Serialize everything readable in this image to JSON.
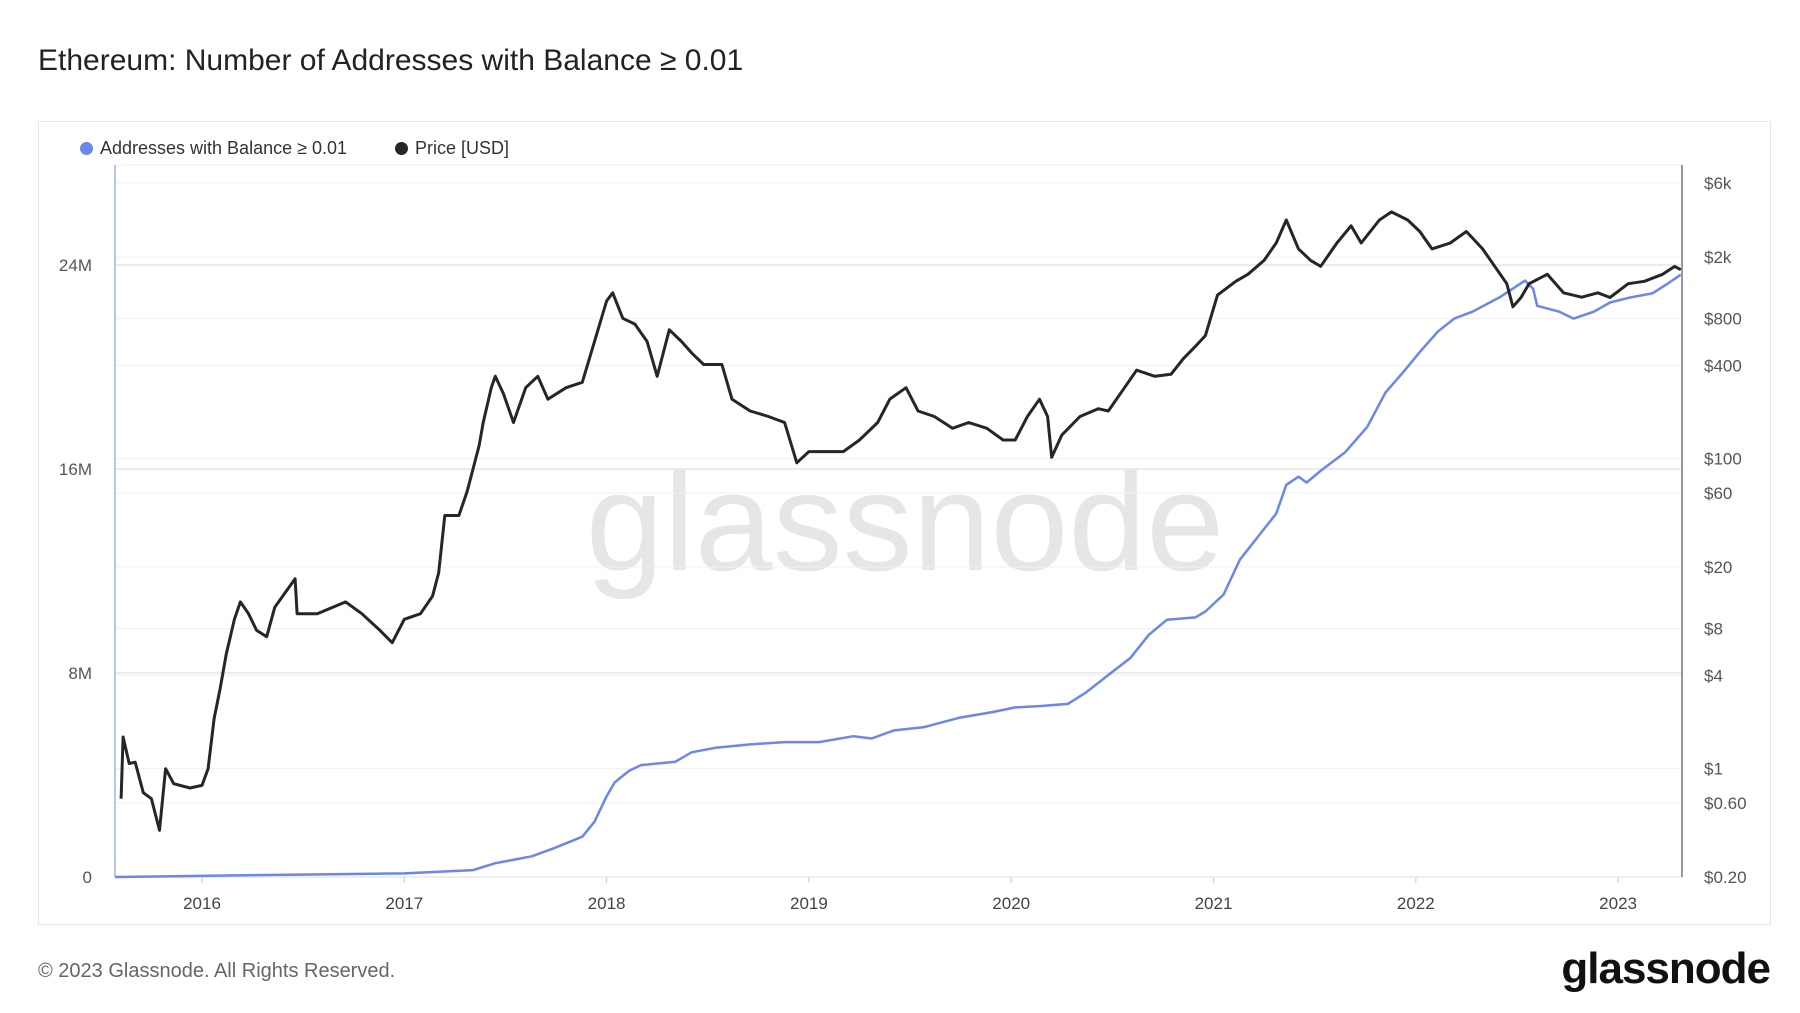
{
  "title": "Ethereum: Number of Addresses with Balance ≥ 0.01",
  "footer": "© 2023 Glassnode. All Rights Reserved.",
  "logo": "glassnode",
  "watermark": "glassnode",
  "colors": {
    "addresses": "#6b86ee",
    "price": "#262626"
  },
  "chart_data": {
    "type": "line",
    "title": "Ethereum: Number of Addresses with Balance ≥ 0.01",
    "legend": [
      "Addresses with Balance ≥ 0.01",
      "Price [USD]"
    ],
    "legend_position": "top-left",
    "x_ticks": [
      "2016",
      "2017",
      "2018",
      "2019",
      "2020",
      "2021",
      "2022",
      "2023"
    ],
    "x_range": [
      2015.57,
      2023.31
    ],
    "y_left": {
      "ticks": [
        "0",
        "8M",
        "16M",
        "24M"
      ],
      "tick_values": [
        0,
        8,
        16,
        24
      ],
      "unit": "millions",
      "range": [
        0,
        27.7
      ]
    },
    "y_right": {
      "scale": "log",
      "ticks": [
        "$0.20",
        "$0.60",
        "$1",
        "$4",
        "$8",
        "$20",
        "$60",
        "$100",
        "$400",
        "$800",
        "$2k",
        "$6k"
      ],
      "tick_values": [
        0.2,
        0.6,
        1,
        4,
        8,
        20,
        60,
        100,
        400,
        800,
        2000,
        6000
      ],
      "range": [
        0.2,
        6000
      ]
    },
    "grid": true,
    "series": [
      {
        "name": "Addresses with Balance ≥ 0.01",
        "axis": "left",
        "x": [
          2015.57,
          2016.43,
          2017.0,
          2017.34,
          2017.45,
          2017.63,
          2017.74,
          2017.88,
          2017.94,
          2018.0,
          2018.04,
          2018.11,
          2018.17,
          2018.34,
          2018.42,
          2018.54,
          2018.71,
          2018.88,
          2019.05,
          2019.22,
          2019.31,
          2019.42,
          2019.57,
          2019.74,
          2019.91,
          2020.02,
          2020.14,
          2020.28,
          2020.37,
          2020.48,
          2020.59,
          2020.68,
          2020.77,
          2020.91,
          2020.96,
          2021.05,
          2021.13,
          2021.22,
          2021.31,
          2021.36,
          2021.42,
          2021.46,
          2021.53,
          2021.65,
          2021.76,
          2021.85,
          2021.94,
          2022.02,
          2022.11,
          2022.19,
          2022.28,
          2022.42,
          2022.54,
          2022.58,
          2022.6,
          2022.71,
          2022.78,
          2022.88,
          2022.96,
          2023.05,
          2023.17,
          2023.25,
          2023.31
        ],
        "y": [
          0,
          0.09,
          0.14,
          0.27,
          0.54,
          0.81,
          1.13,
          1.58,
          2.17,
          3.17,
          3.71,
          4.16,
          4.39,
          4.52,
          4.89,
          5.07,
          5.2,
          5.29,
          5.29,
          5.52,
          5.43,
          5.75,
          5.88,
          6.24,
          6.47,
          6.65,
          6.7,
          6.79,
          7.24,
          7.92,
          8.6,
          9.5,
          10.09,
          10.18,
          10.41,
          11.08,
          12.44,
          13.35,
          14.25,
          15.38,
          15.7,
          15.47,
          15.93,
          16.65,
          17.65,
          19.0,
          19.82,
          20.59,
          21.4,
          21.9,
          22.17,
          22.76,
          23.39,
          23.07,
          22.4,
          22.17,
          21.9,
          22.17,
          22.53,
          22.71,
          22.89,
          23.3,
          23.62
        ]
      },
      {
        "name": "Price [USD]",
        "axis": "right",
        "x": [
          2015.6,
          2015.61,
          2015.64,
          2015.67,
          2015.71,
          2015.75,
          2015.79,
          2015.82,
          2015.86,
          2015.94,
          2016.0,
          2016.03,
          2016.06,
          2016.09,
          2016.12,
          2016.16,
          2016.19,
          2016.23,
          2016.27,
          2016.32,
          2016.36,
          2016.46,
          2016.47,
          2016.57,
          2016.71,
          2016.79,
          2016.88,
          2016.94,
          2017.0,
          2017.08,
          2017.14,
          2017.17,
          2017.2,
          2017.27,
          2017.31,
          2017.34,
          2017.37,
          2017.39,
          2017.43,
          2017.45,
          2017.49,
          2017.54,
          2017.6,
          2017.66,
          2017.71,
          2017.8,
          2017.88,
          2017.94,
          2018.0,
          2018.03,
          2018.08,
          2018.14,
          2018.2,
          2018.25,
          2018.31,
          2018.37,
          2018.42,
          2018.48,
          2018.57,
          2018.62,
          2018.71,
          2018.8,
          2018.88,
          2018.94,
          2019.0,
          2019.08,
          2019.17,
          2019.25,
          2019.34,
          2019.4,
          2019.48,
          2019.54,
          2019.62,
          2019.71,
          2019.79,
          2019.88,
          2019.96,
          2020.02,
          2020.08,
          2020.14,
          2020.18,
          2020.2,
          2020.25,
          2020.34,
          2020.43,
          2020.48,
          2020.56,
          2020.62,
          2020.71,
          2020.79,
          2020.85,
          2020.91,
          2020.96,
          2021.02,
          2021.11,
          2021.17,
          2021.25,
          2021.31,
          2021.36,
          2021.42,
          2021.48,
          2021.53,
          2021.61,
          2021.68,
          2021.73,
          2021.82,
          2021.88,
          2021.96,
          2022.02,
          2022.08,
          2022.17,
          2022.25,
          2022.33,
          2022.39,
          2022.45,
          2022.48,
          2022.52,
          2022.56,
          2022.65,
          2022.73,
          2022.82,
          2022.9,
          2022.96,
          2023.05,
          2023.13,
          2023.22,
          2023.28,
          2023.31
        ],
        "y": [
          0.64,
          1.6,
          1.08,
          1.1,
          0.7,
          0.64,
          0.4,
          1.0,
          0.8,
          0.75,
          0.78,
          1.0,
          2.1,
          3.3,
          5.5,
          9.2,
          11.9,
          10,
          7.8,
          7.1,
          11,
          16.8,
          10,
          10,
          11.9,
          10,
          7.8,
          6.5,
          9.2,
          10,
          13,
          18.4,
          43,
          43,
          61,
          86,
          122,
          171,
          287,
          340,
          263,
          171,
          287,
          340,
          242,
          287,
          311,
          570,
          1040,
          1175,
          804,
          738,
          570,
          340,
          678,
          570,
          481,
          405,
          405,
          242,
          203,
          187,
          171,
          94,
          111,
          111,
          111,
          132,
          171,
          242,
          287,
          203,
          187,
          157,
          171,
          157,
          132,
          132,
          187,
          242,
          187,
          102,
          142,
          187,
          210,
          203,
          287,
          372,
          340,
          350,
          441,
          530,
          622,
          1135,
          1394,
          1546,
          1901,
          2461,
          3467,
          2255,
          1901,
          1742,
          2461,
          3180,
          2461,
          3467,
          3910,
          3467,
          2920,
          2255,
          2461,
          2920,
          2255,
          1742,
          1346,
          955,
          1096,
          1346,
          1546,
          1175,
          1100,
          1175,
          1096,
          1346,
          1394,
          1546,
          1740,
          1656
        ]
      }
    ]
  }
}
